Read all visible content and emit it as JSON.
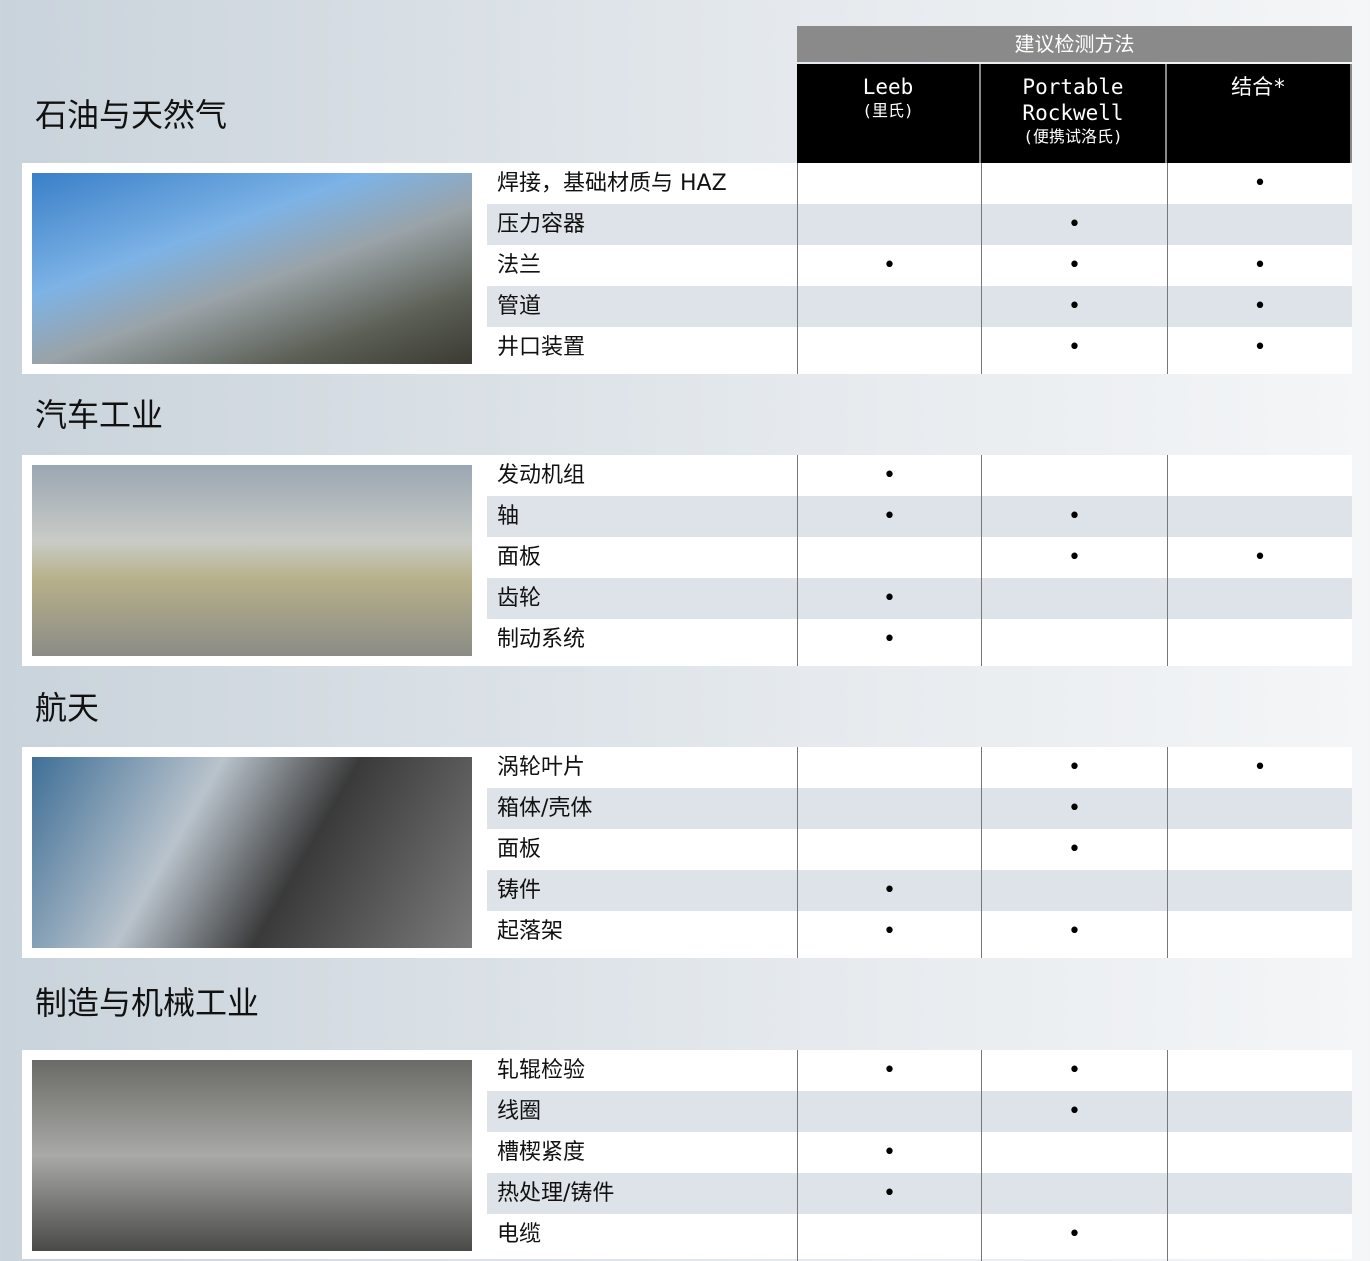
{
  "header": {
    "method_title": "建议检测方法",
    "columns": [
      {
        "lines": [
          "Leeb"
        ],
        "sub": "(里氏)"
      },
      {
        "lines": [
          "Portable",
          "Rockwell"
        ],
        "sub": "(便携试洛氏)"
      },
      {
        "lines": [
          "结合*"
        ]
      }
    ]
  },
  "sections": [
    {
      "title": "石油与天然气",
      "rows": [
        {
          "label": "焊接，基础材质与 HAZ",
          "cells": [
            null,
            null,
            "•"
          ]
        },
        {
          "label": "压力容器",
          "cells": [
            null,
            "•",
            null
          ]
        },
        {
          "label": "法兰",
          "cells": [
            "•",
            "•",
            "•"
          ]
        },
        {
          "label": "管道",
          "cells": [
            null,
            "•",
            "•"
          ]
        },
        {
          "label": "井口装置",
          "cells": [
            null,
            "•",
            "•"
          ]
        }
      ]
    },
    {
      "title": "汽车工业",
      "rows": [
        {
          "label": "发动机组",
          "cells": [
            "•",
            null,
            null
          ]
        },
        {
          "label": "轴",
          "cells": [
            "•",
            "•",
            null
          ]
        },
        {
          "label": "面板",
          "cells": [
            null,
            "•",
            "•"
          ]
        },
        {
          "label": "齿轮",
          "cells": [
            "•",
            null,
            null
          ]
        },
        {
          "label": "制动系统",
          "cells": [
            "•",
            null,
            null
          ]
        }
      ]
    },
    {
      "title": "航天",
      "rows": [
        {
          "label": "涡轮叶片",
          "cells": [
            null,
            "•",
            "•"
          ]
        },
        {
          "label": "箱体/壳体",
          "cells": [
            null,
            "•",
            null
          ]
        },
        {
          "label": "面板",
          "cells": [
            null,
            "•",
            null
          ]
        },
        {
          "label": "铸件",
          "cells": [
            "•",
            null,
            null
          ]
        },
        {
          "label": "起落架",
          "cells": [
            "•",
            "•",
            null
          ]
        }
      ]
    },
    {
      "title": "制造与机械工业",
      "rows": [
        {
          "label": "轧辊检验",
          "cells": [
            "•",
            "•",
            null
          ]
        },
        {
          "label": "线圈",
          "cells": [
            null,
            "•",
            null
          ]
        },
        {
          "label": "槽楔紧度",
          "cells": [
            "•",
            null,
            null
          ]
        },
        {
          "label": "热处理/铸件",
          "cells": [
            "•",
            null,
            null
          ]
        },
        {
          "label": "电缆",
          "cells": [
            null,
            "•",
            null
          ]
        }
      ]
    }
  ]
}
